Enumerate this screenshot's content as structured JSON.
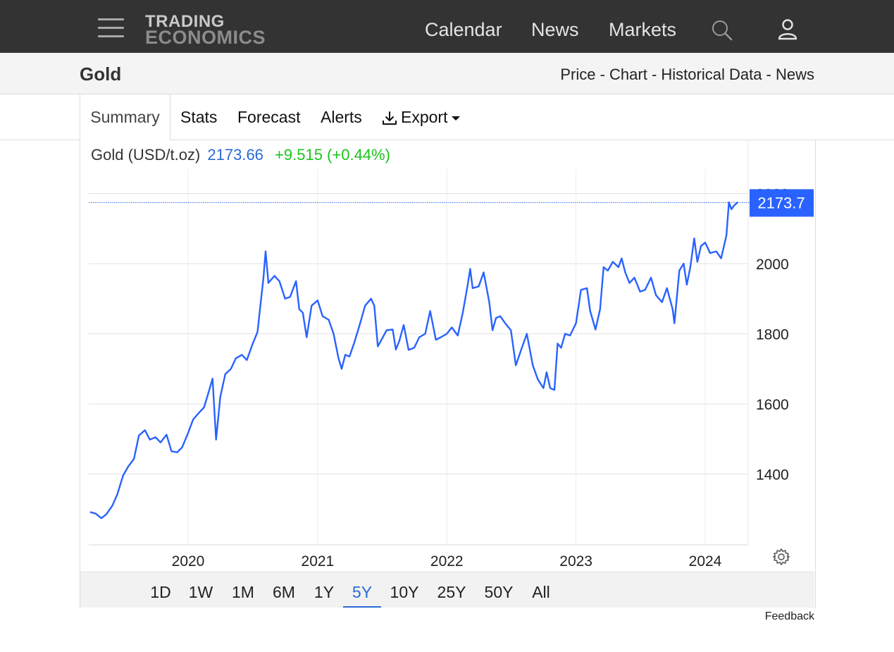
{
  "header": {
    "logo_line1": "TRADING",
    "logo_line2": "ECONOMICS",
    "nav": [
      "Calendar",
      "News",
      "Markets"
    ],
    "icons": [
      "menu-icon",
      "search-icon",
      "user-icon"
    ],
    "background": "#333333"
  },
  "subheader": {
    "title": "Gold",
    "links": "Price - Chart - Historical Data - News"
  },
  "tabs": {
    "items": [
      "Summary",
      "Stats",
      "Forecast",
      "Alerts"
    ],
    "export_label": "Export",
    "active": "Summary"
  },
  "quote": {
    "name": "Gold (USD/t.oz)",
    "price": "2173.66",
    "change": "+9.515 (+0.44%)",
    "price_color": "#2a6bd6",
    "change_color": "#1bc41b"
  },
  "range": {
    "options": [
      "1D",
      "1W",
      "1M",
      "6M",
      "1Y",
      "5Y",
      "10Y",
      "25Y",
      "50Y",
      "All"
    ],
    "selected": "5Y"
  },
  "feedback": "Feedback",
  "chart_data": {
    "type": "line",
    "title": "",
    "xlabel": "",
    "ylabel": "",
    "x_ticks": [
      "2020",
      "2021",
      "2022",
      "2023",
      "2024"
    ],
    "y_ticks": [
      1400,
      1600,
      1800,
      2000,
      2200
    ],
    "ylim": [
      1200,
      2400
    ],
    "last_value_label": "2173.7",
    "line_color": "#2962ff",
    "grid": true,
    "series": [
      {
        "points": [
          [
            "2019-04-01",
            1291
          ],
          [
            "2019-04-15",
            1287
          ],
          [
            "2019-05-01",
            1274
          ],
          [
            "2019-05-15",
            1285
          ],
          [
            "2019-06-01",
            1310
          ],
          [
            "2019-06-15",
            1342
          ],
          [
            "2019-07-01",
            1395
          ],
          [
            "2019-07-15",
            1420
          ],
          [
            "2019-08-01",
            1443
          ],
          [
            "2019-08-15",
            1510
          ],
          [
            "2019-09-01",
            1525
          ],
          [
            "2019-09-15",
            1498
          ],
          [
            "2019-10-01",
            1505
          ],
          [
            "2019-10-15",
            1490
          ],
          [
            "2019-11-01",
            1512
          ],
          [
            "2019-11-15",
            1465
          ],
          [
            "2019-12-01",
            1462
          ],
          [
            "2019-12-15",
            1476
          ],
          [
            "2020-01-01",
            1517
          ],
          [
            "2020-01-15",
            1555
          ],
          [
            "2020-02-01",
            1575
          ],
          [
            "2020-02-15",
            1590
          ],
          [
            "2020-03-01",
            1640
          ],
          [
            "2020-03-10",
            1672
          ],
          [
            "2020-03-20",
            1498
          ],
          [
            "2020-04-01",
            1620
          ],
          [
            "2020-04-15",
            1685
          ],
          [
            "2020-05-01",
            1700
          ],
          [
            "2020-05-15",
            1730
          ],
          [
            "2020-06-01",
            1740
          ],
          [
            "2020-06-15",
            1725
          ],
          [
            "2020-07-01",
            1770
          ],
          [
            "2020-07-15",
            1805
          ],
          [
            "2020-08-01",
            1960
          ],
          [
            "2020-08-07",
            2035
          ],
          [
            "2020-08-15",
            1945
          ],
          [
            "2020-09-01",
            1965
          ],
          [
            "2020-09-15",
            1950
          ],
          [
            "2020-10-01",
            1900
          ],
          [
            "2020-10-15",
            1905
          ],
          [
            "2020-11-01",
            1950
          ],
          [
            "2020-11-10",
            1870
          ],
          [
            "2020-11-20",
            1860
          ],
          [
            "2020-12-01",
            1790
          ],
          [
            "2020-12-15",
            1880
          ],
          [
            "2021-01-01",
            1895
          ],
          [
            "2021-01-15",
            1850
          ],
          [
            "2021-02-01",
            1840
          ],
          [
            "2021-02-15",
            1800
          ],
          [
            "2021-03-01",
            1730
          ],
          [
            "2021-03-10",
            1700
          ],
          [
            "2021-03-20",
            1740
          ],
          [
            "2021-04-01",
            1735
          ],
          [
            "2021-04-15",
            1776
          ],
          [
            "2021-05-01",
            1830
          ],
          [
            "2021-05-15",
            1880
          ],
          [
            "2021-06-01",
            1900
          ],
          [
            "2021-06-10",
            1880
          ],
          [
            "2021-06-20",
            1764
          ],
          [
            "2021-07-01",
            1784
          ],
          [
            "2021-07-15",
            1810
          ],
          [
            "2021-08-01",
            1812
          ],
          [
            "2021-08-10",
            1755
          ],
          [
            "2021-08-20",
            1780
          ],
          [
            "2021-09-01",
            1825
          ],
          [
            "2021-09-15",
            1754
          ],
          [
            "2021-10-01",
            1760
          ],
          [
            "2021-10-15",
            1790
          ],
          [
            "2021-11-01",
            1800
          ],
          [
            "2021-11-15",
            1865
          ],
          [
            "2021-12-01",
            1783
          ],
          [
            "2021-12-15",
            1790
          ],
          [
            "2022-01-01",
            1800
          ],
          [
            "2022-01-15",
            1818
          ],
          [
            "2022-02-01",
            1795
          ],
          [
            "2022-02-15",
            1860
          ],
          [
            "2022-03-01",
            1940
          ],
          [
            "2022-03-08",
            1985
          ],
          [
            "2022-03-15",
            1930
          ],
          [
            "2022-04-01",
            1935
          ],
          [
            "2022-04-15",
            1975
          ],
          [
            "2022-05-01",
            1890
          ],
          [
            "2022-05-10",
            1810
          ],
          [
            "2022-05-20",
            1845
          ],
          [
            "2022-06-01",
            1850
          ],
          [
            "2022-06-15",
            1830
          ],
          [
            "2022-07-01",
            1810
          ],
          [
            "2022-07-15",
            1710
          ],
          [
            "2022-08-01",
            1760
          ],
          [
            "2022-08-15",
            1800
          ],
          [
            "2022-09-01",
            1710
          ],
          [
            "2022-09-15",
            1670
          ],
          [
            "2022-10-01",
            1645
          ],
          [
            "2022-10-10",
            1690
          ],
          [
            "2022-10-20",
            1645
          ],
          [
            "2022-11-01",
            1640
          ],
          [
            "2022-11-10",
            1772
          ],
          [
            "2022-11-20",
            1760
          ],
          [
            "2022-12-01",
            1800
          ],
          [
            "2022-12-15",
            1795
          ],
          [
            "2023-01-01",
            1830
          ],
          [
            "2023-01-15",
            1925
          ],
          [
            "2023-02-01",
            1930
          ],
          [
            "2023-02-10",
            1865
          ],
          [
            "2023-02-25",
            1812
          ],
          [
            "2023-03-10",
            1870
          ],
          [
            "2023-03-20",
            1990
          ],
          [
            "2023-04-01",
            1980
          ],
          [
            "2023-04-15",
            2005
          ],
          [
            "2023-05-01",
            1990
          ],
          [
            "2023-05-10",
            2015
          ],
          [
            "2023-05-20",
            1975
          ],
          [
            "2023-06-01",
            1945
          ],
          [
            "2023-06-15",
            1960
          ],
          [
            "2023-07-01",
            1920
          ],
          [
            "2023-07-15",
            1925
          ],
          [
            "2023-08-01",
            1960
          ],
          [
            "2023-08-15",
            1910
          ],
          [
            "2023-09-01",
            1890
          ],
          [
            "2023-09-15",
            1930
          ],
          [
            "2023-10-01",
            1870
          ],
          [
            "2023-10-06",
            1830
          ],
          [
            "2023-10-20",
            1980
          ],
          [
            "2023-11-01",
            2000
          ],
          [
            "2023-11-10",
            1940
          ],
          [
            "2023-11-20",
            1990
          ],
          [
            "2023-12-01",
            2072
          ],
          [
            "2023-12-10",
            2005
          ],
          [
            "2023-12-20",
            2050
          ],
          [
            "2024-01-01",
            2060
          ],
          [
            "2024-01-15",
            2030
          ],
          [
            "2024-02-01",
            2035
          ],
          [
            "2024-02-15",
            2015
          ],
          [
            "2024-03-01",
            2080
          ],
          [
            "2024-03-08",
            2175
          ],
          [
            "2024-03-15",
            2155
          ],
          [
            "2024-03-22",
            2165
          ],
          [
            "2024-04-01",
            2174
          ]
        ]
      }
    ]
  }
}
